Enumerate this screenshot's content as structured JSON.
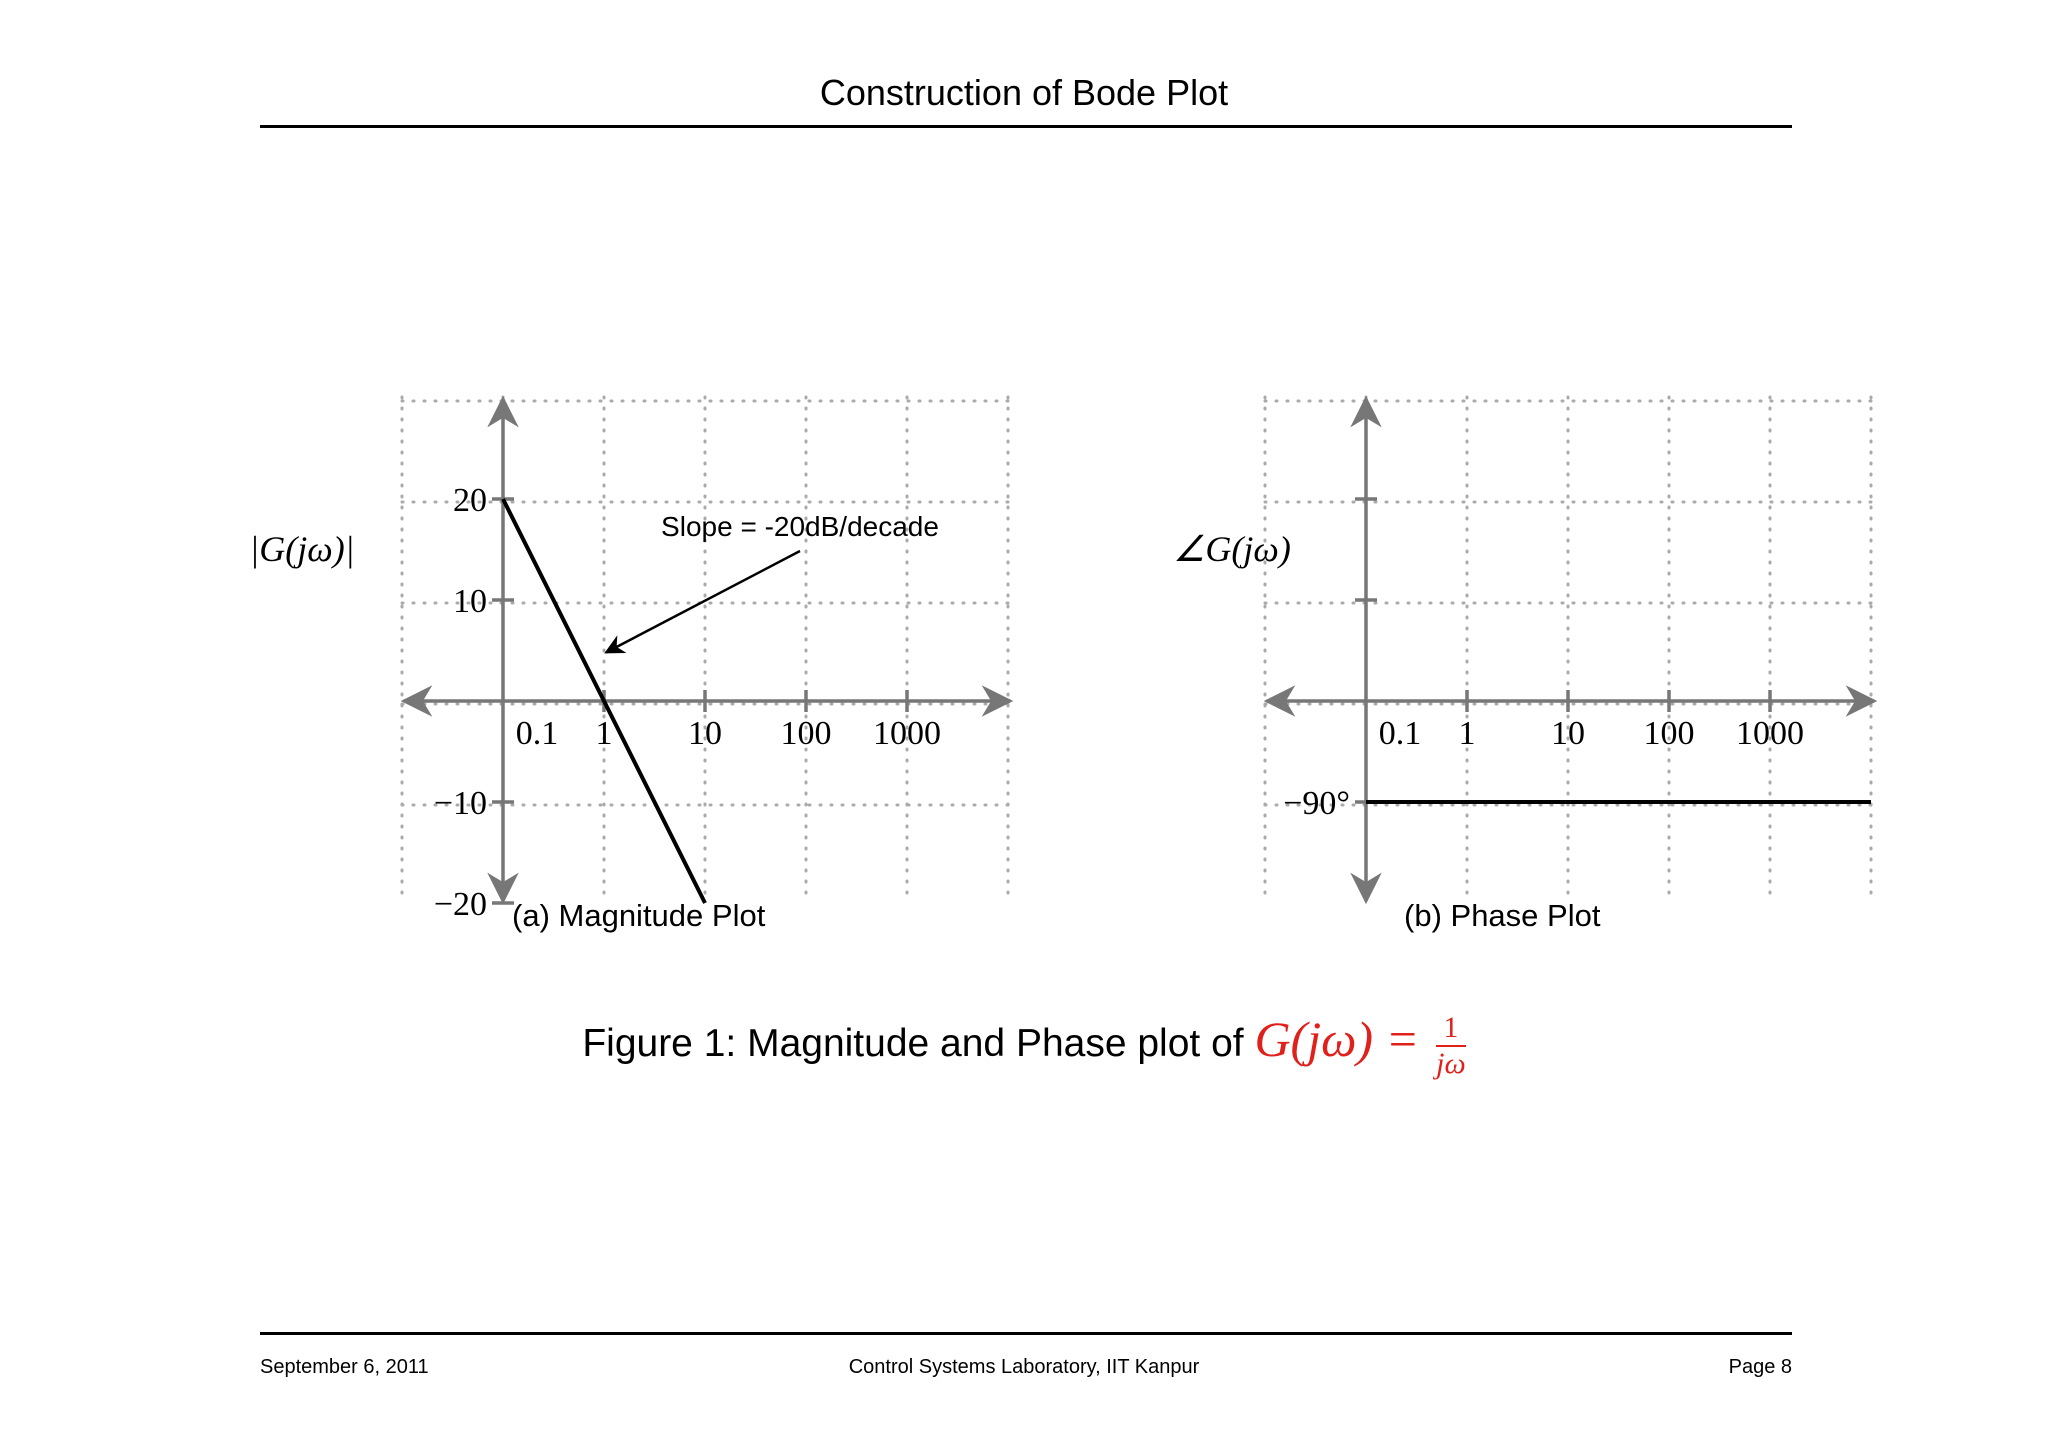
{
  "header": {
    "title": "Construction of Bode Plot"
  },
  "footer": {
    "date": "September 6, 2011",
    "center": "Control Systems Laboratory, IIT Kanpur",
    "page": "Page 8"
  },
  "figure": {
    "caption_prefix": "Figure 1:",
    "caption_text": "Magnitude and Phase plot of",
    "caption_math": "G(jω) =",
    "caption_frac_num": "1",
    "caption_frac_den": "jω"
  },
  "colors": {
    "axis": "#777777",
    "grid": "#aaaaaa",
    "line": "#000000",
    "caption_math": "#e0201b"
  },
  "chart_data": [
    {
      "type": "line",
      "subcaption_label": "(a)",
      "subcaption_text": "Magnitude Plot",
      "ylabel": "|G(jω)|",
      "x_scale": "log",
      "x_ticks": [
        "0.1",
        "1",
        "10",
        "100",
        "1000"
      ],
      "y_ticks": [
        "20",
        "10",
        "−10",
        "−20"
      ],
      "y_tick_values": [
        20,
        10,
        -10,
        -20
      ],
      "grid": true,
      "series": [
        {
          "x": [
            0.1,
            10
          ],
          "y": [
            20,
            -20
          ]
        }
      ],
      "annotation": {
        "text": "Slope = -20dB/decade",
        "points_to_x": 1,
        "points_to_y": 5
      }
    },
    {
      "type": "line",
      "subcaption_label": "(b)",
      "subcaption_text": "Phase Plot",
      "ylabel": "∠G(jω)",
      "x_scale": "log",
      "x_ticks": [
        "0.1",
        "1",
        "10",
        "100",
        "1000"
      ],
      "y_ticks": [
        "−90°"
      ],
      "y_tick_values": [
        -90
      ],
      "grid": true,
      "series": [
        {
          "x": [
            0.1,
            10000
          ],
          "y": [
            -90,
            -90
          ]
        }
      ]
    }
  ]
}
